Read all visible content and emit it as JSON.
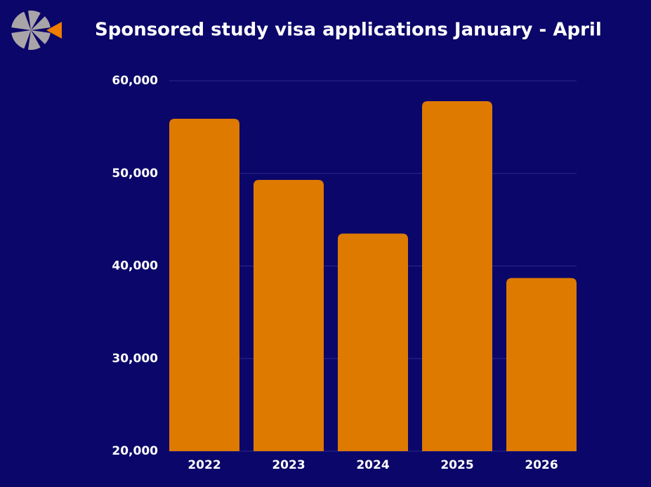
{
  "chart_data": {
    "type": "bar",
    "title": "Sponsored study visa applications January - April",
    "categories": [
      "2022",
      "2023",
      "2024",
      "2025",
      "2026"
    ],
    "values": [
      55900,
      49300,
      43500,
      57800,
      38700
    ],
    "color": "#de7a00",
    "ylim": [
      20000,
      60000
    ],
    "yticks": [
      {
        "value": 20000,
        "label": "20,000"
      },
      {
        "value": 30000,
        "label": "30,000"
      },
      {
        "value": 40000,
        "label": "40,000"
      },
      {
        "value": 50000,
        "label": "50,000"
      },
      {
        "value": 60000,
        "label": "60,000"
      }
    ],
    "grid": true
  }
}
